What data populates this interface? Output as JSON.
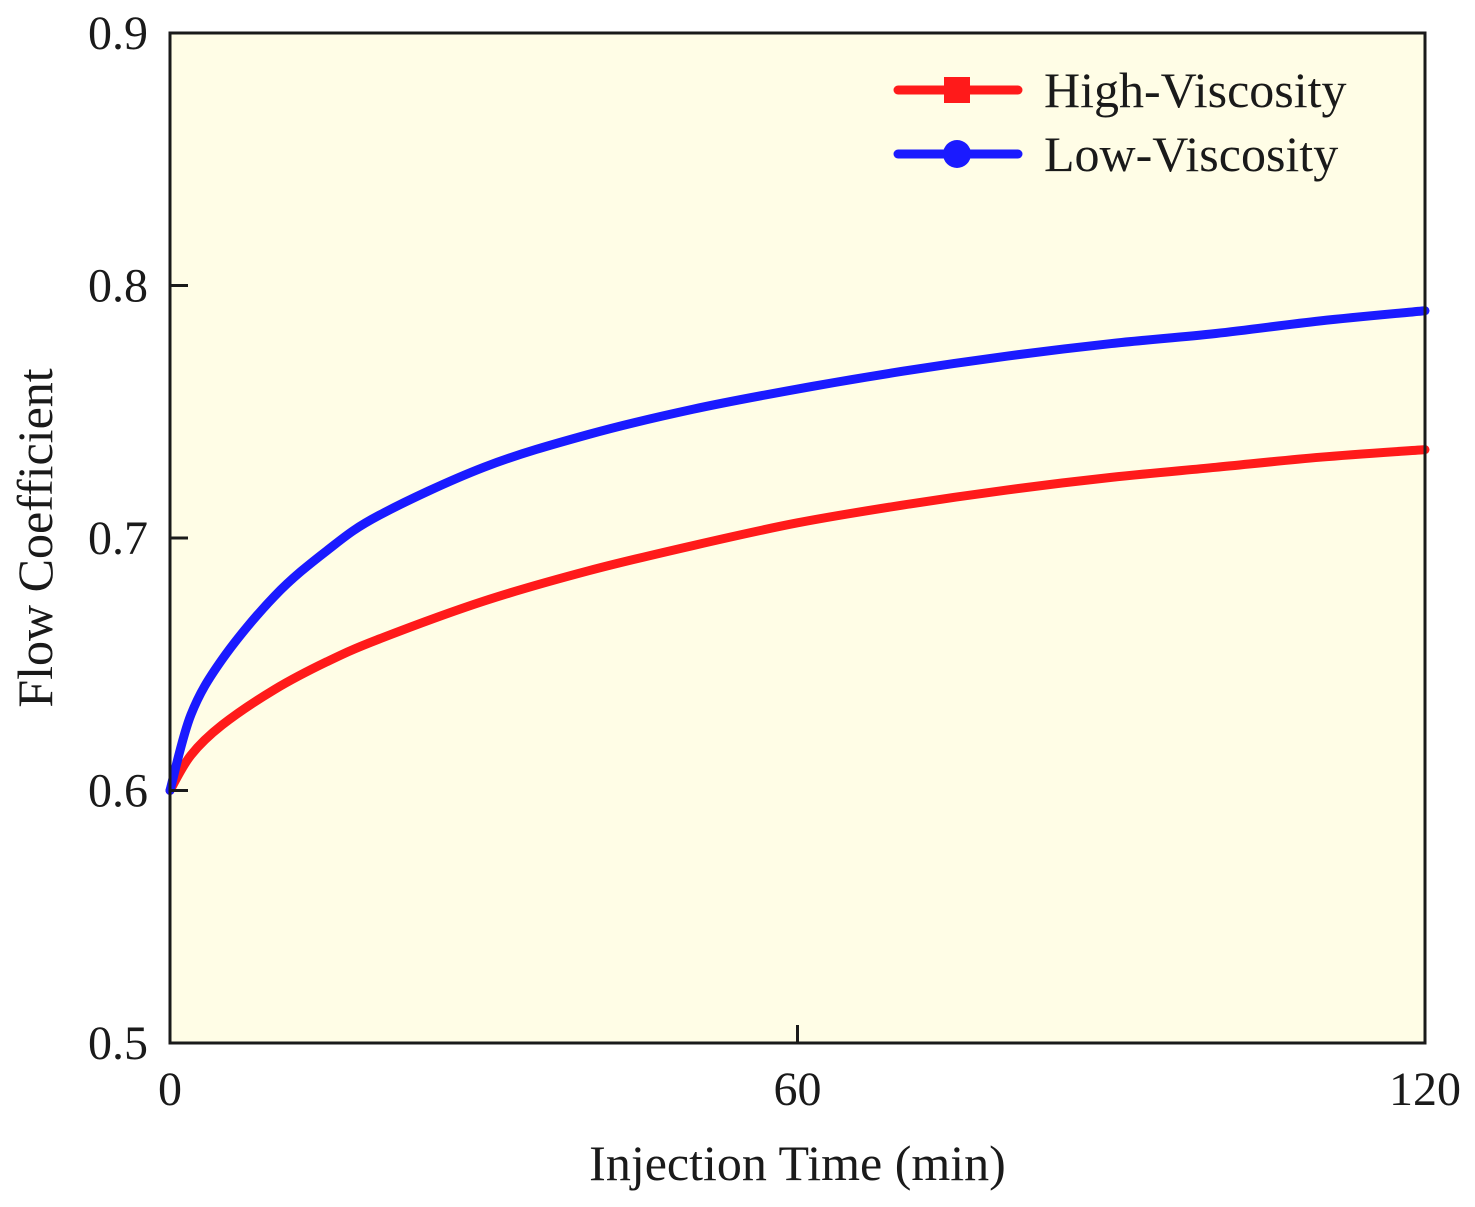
{
  "chart_data": {
    "type": "line",
    "title": "",
    "xlabel": "Injection Time (min)",
    "ylabel": "Flow Coefficient",
    "xlim": [
      0,
      120
    ],
    "ylim": [
      0.5,
      0.9
    ],
    "xticks": [
      0,
      60,
      120
    ],
    "yticks": [
      0.5,
      0.6,
      0.7,
      0.8,
      0.9
    ],
    "xtick_labels": [
      "0",
      "60",
      "120"
    ],
    "ytick_labels": [
      "0.5",
      "0.6",
      "0.7",
      "0.8",
      "0.9"
    ],
    "grid": false,
    "legend_position": "top-right",
    "plot_background": "#fffde6",
    "x": [
      0,
      2,
      5,
      10,
      15,
      20,
      30,
      40,
      50,
      60,
      70,
      80,
      90,
      100,
      110,
      120
    ],
    "series": [
      {
        "name": "High-Viscosity",
        "color": "#ff1a1a",
        "marker": "square",
        "values": [
          0.6,
          0.614,
          0.626,
          0.64,
          0.651,
          0.66,
          0.675,
          0.687,
          0.697,
          0.706,
          0.713,
          0.719,
          0.724,
          0.728,
          0.732,
          0.735
        ]
      },
      {
        "name": "Low-Viscosity",
        "color": "#1a1aff",
        "marker": "circle",
        "values": [
          0.6,
          0.63,
          0.652,
          0.677,
          0.695,
          0.709,
          0.728,
          0.741,
          0.751,
          0.759,
          0.766,
          0.772,
          0.777,
          0.781,
          0.786,
          0.79
        ]
      }
    ]
  }
}
